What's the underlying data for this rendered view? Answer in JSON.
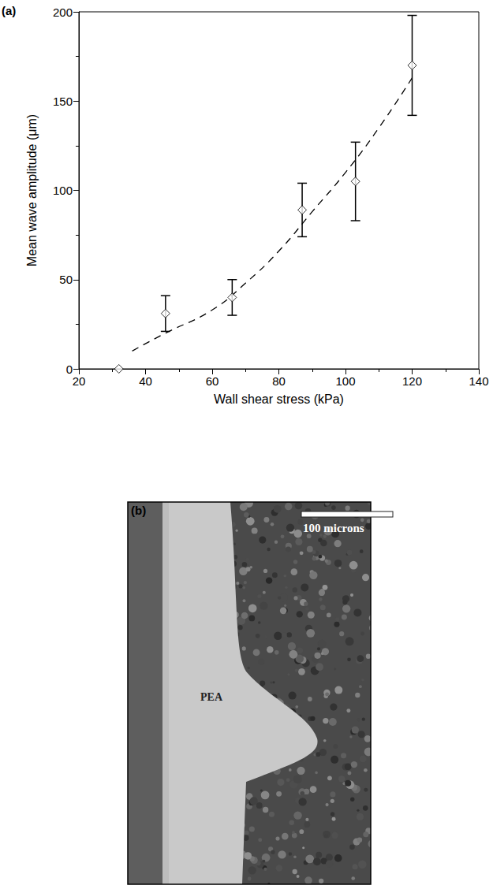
{
  "chart_data": {
    "type": "scatter",
    "panel": "(a)",
    "x_label": "Wall shear stress (kPa)",
    "y_label": "Mean wave amplitude (μm)",
    "series": [
      {
        "type": "scatter",
        "color": "#000000",
        "marker": "diamond",
        "x": [
          32,
          46,
          66,
          87,
          103,
          120
        ],
        "values": [
          0,
          31,
          40,
          89,
          105,
          170
        ],
        "error_low": [
          null,
          21,
          30,
          74,
          83,
          142
        ],
        "error_high": [
          null,
          41,
          50,
          104,
          127,
          198
        ]
      },
      {
        "type": "line",
        "color": "#000000",
        "line_style": "dashed",
        "x": [
          36,
          46,
          60,
          70,
          80,
          90,
          100,
          110,
          120
        ],
        "values": [
          10,
          20,
          33,
          48,
          66,
          88,
          110,
          135,
          163
        ]
      }
    ],
    "xlim": [
      20,
      140
    ],
    "xticks": [
      20,
      40,
      60,
      80,
      100,
      120,
      140
    ],
    "ylim": [
      0,
      200
    ],
    "yticks": [
      0,
      50,
      100,
      150,
      200
    ],
    "grid": false
  },
  "image": {
    "panel": "(b)",
    "scale_bar": "100 microns",
    "region_label": "PEA"
  }
}
